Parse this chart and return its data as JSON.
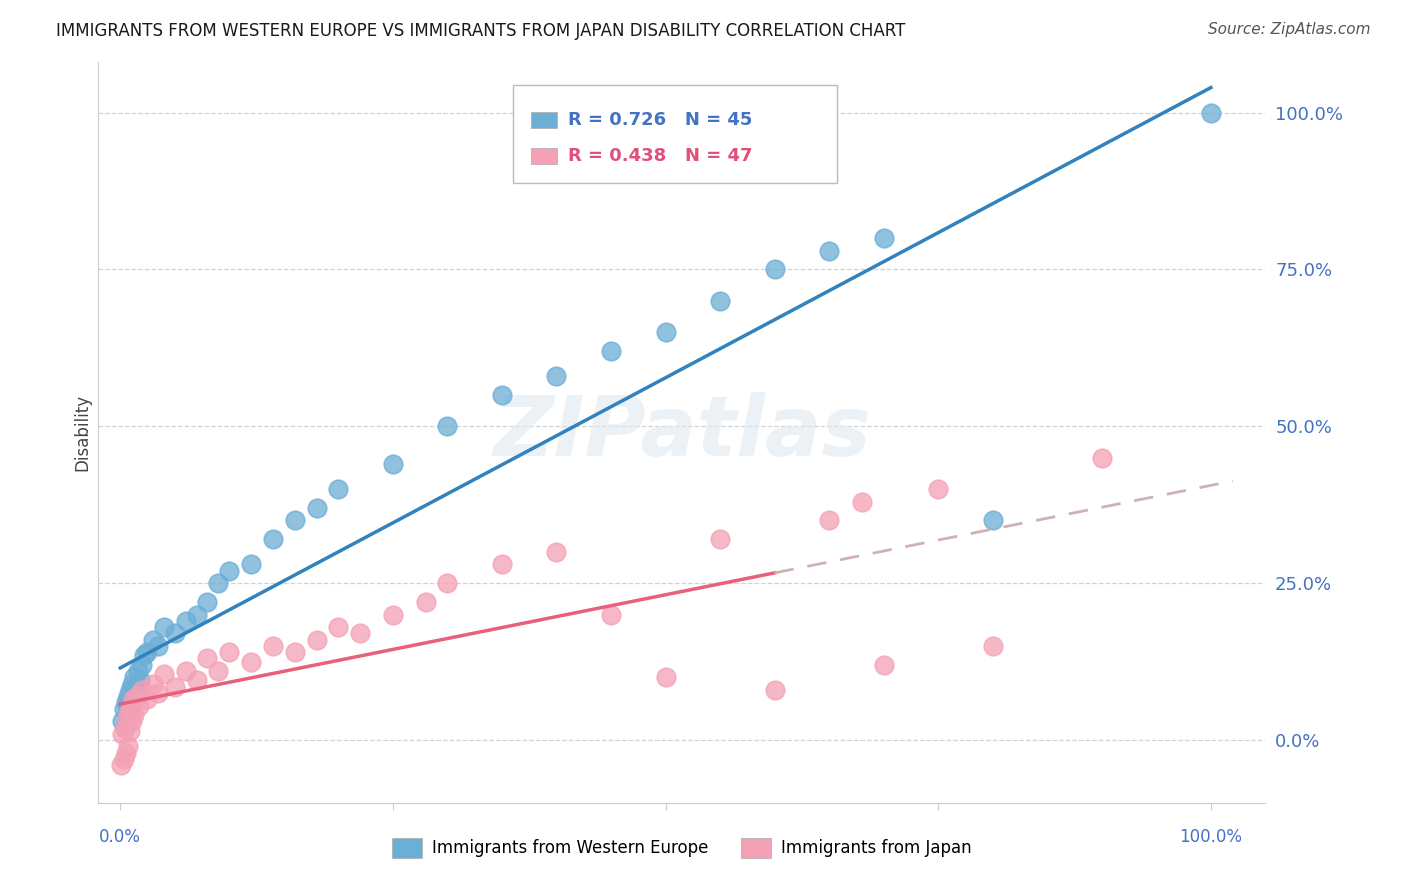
{
  "title": "IMMIGRANTS FROM WESTERN EUROPE VS IMMIGRANTS FROM JAPAN DISABILITY CORRELATION CHART",
  "source": "Source: ZipAtlas.com",
  "ylabel": "Disability",
  "r_western": 0.726,
  "n_western": 45,
  "r_japan": 0.438,
  "n_japan": 47,
  "color_western": "#6baed6",
  "color_japan": "#f4a0b5",
  "color_western_line": "#3182bd",
  "color_japan_line": "#e8607a",
  "color_dashed": "#d0b0b8",
  "watermark": "ZIPatlas",
  "legend1_label": "Immigrants from Western Europe",
  "legend2_label": "Immigrants from Japan",
  "background": "#ffffff",
  "grid_color": "#cccccc",
  "title_color": "#1a1a1a",
  "axis_label_color": "#444444",
  "source_color": "#555555",
  "ytick_color": "#4472c4",
  "w_x": [
    0.2,
    0.3,
    0.4,
    0.5,
    0.6,
    0.7,
    0.8,
    0.9,
    1.0,
    1.1,
    1.2,
    1.3,
    1.4,
    1.5,
    1.6,
    1.8,
    2.0,
    2.2,
    2.5,
    3.0,
    3.5,
    4.0,
    5.0,
    6.0,
    7.0,
    8.0,
    9.0,
    10.0,
    12.0,
    14.0,
    16.0,
    18.0,
    20.0,
    25.0,
    30.0,
    35.0,
    40.0,
    45.0,
    50.0,
    55.0,
    60.0,
    65.0,
    70.0,
    80.0,
    100.0
  ],
  "w_y": [
    3.0,
    5.0,
    2.0,
    6.0,
    4.0,
    7.0,
    5.5,
    8.0,
    4.5,
    9.0,
    6.5,
    10.0,
    7.0,
    8.5,
    11.0,
    9.5,
    12.0,
    13.5,
    14.0,
    16.0,
    15.0,
    18.0,
    17.0,
    19.0,
    20.0,
    22.0,
    25.0,
    27.0,
    28.0,
    32.0,
    35.0,
    37.0,
    40.0,
    44.0,
    50.0,
    55.0,
    58.0,
    62.0,
    65.0,
    70.0,
    75.0,
    78.0,
    80.0,
    35.0,
    100.0
  ],
  "j_x": [
    0.1,
    0.2,
    0.3,
    0.4,
    0.5,
    0.6,
    0.7,
    0.8,
    0.9,
    1.0,
    1.1,
    1.2,
    1.3,
    1.5,
    1.7,
    2.0,
    2.5,
    3.0,
    3.5,
    4.0,
    5.0,
    6.0,
    7.0,
    8.0,
    9.0,
    10.0,
    12.0,
    14.0,
    16.0,
    18.0,
    20.0,
    22.0,
    25.0,
    28.0,
    30.0,
    35.0,
    40.0,
    45.0,
    50.0,
    55.0,
    60.0,
    65.0,
    68.0,
    70.0,
    75.0,
    80.0,
    90.0
  ],
  "j_y": [
    -4.0,
    1.0,
    -3.0,
    2.0,
    -2.0,
    3.5,
    -1.0,
    4.5,
    1.5,
    5.0,
    3.0,
    6.5,
    4.0,
    7.0,
    5.5,
    8.0,
    6.5,
    9.0,
    7.5,
    10.5,
    8.5,
    11.0,
    9.5,
    13.0,
    11.0,
    14.0,
    12.5,
    15.0,
    14.0,
    16.0,
    18.0,
    17.0,
    20.0,
    22.0,
    25.0,
    28.0,
    30.0,
    20.0,
    10.0,
    32.0,
    8.0,
    35.0,
    38.0,
    12.0,
    40.0,
    15.0,
    45.0
  ],
  "xlim": [
    -2,
    105
  ],
  "ylim": [
    -10,
    108
  ],
  "ytick_vals": [
    0,
    25,
    50,
    75,
    100
  ],
  "ytick_labels": [
    "0.0%",
    "25.0%",
    "50.0%",
    "75.0%",
    "100.0%"
  ]
}
